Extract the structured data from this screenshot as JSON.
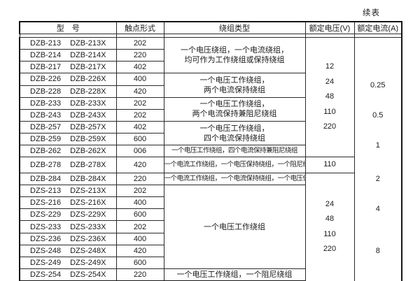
{
  "page": {
    "continued_label": "续表",
    "colors": {
      "background": "#ffffff",
      "text": "#1a1a1a",
      "border": "#2b2b2b"
    }
  },
  "table": {
    "headers": [
      "型　号",
      "触点形式",
      "绕组类型",
      "额定电压(V)",
      "额定电流(A)"
    ],
    "rows": [
      {
        "model": "DZB-213",
        "model_x": "DZB-213X",
        "contact": "202"
      },
      {
        "model": "DZB-214",
        "model_x": "DZB-214X",
        "contact": "220"
      },
      {
        "model": "DZB-217",
        "model_x": "DZB-217X",
        "contact": "402"
      },
      {
        "model": "DZB-226",
        "model_x": "DZB-226X",
        "contact": "400"
      },
      {
        "model": "DZB-228",
        "model_x": "DZB-228X",
        "contact": "420"
      },
      {
        "model": "DZB-233",
        "model_x": "DZB-233X",
        "contact": "202"
      },
      {
        "model": "DZB-243",
        "model_x": "DZB-243X",
        "contact": "202"
      },
      {
        "model": "DZB-257",
        "model_x": "DZB-257X",
        "contact": "402"
      },
      {
        "model": "DZB-259",
        "model_x": "DZB-259X",
        "contact": "600"
      },
      {
        "model": "DZB-262",
        "model_x": "DZB-262X",
        "contact": "006"
      },
      {
        "model": "DZB-278",
        "model_x": "DZB-278X",
        "contact": "420"
      },
      {
        "model": "DZB-284",
        "model_x": "DZB-284X",
        "contact": "220"
      },
      {
        "model": "DZS-213",
        "model_x": "DZS-213X",
        "contact": "202"
      },
      {
        "model": "DZS-216",
        "model_x": "DZS-216X",
        "contact": "400"
      },
      {
        "model": "DZS-229",
        "model_x": "DZS-229X",
        "contact": "600"
      },
      {
        "model": "DZS-233",
        "model_x": "DZS-233X",
        "contact": "202"
      },
      {
        "model": "DZS-236",
        "model_x": "DZS-236X",
        "contact": "400"
      },
      {
        "model": "DZS-248",
        "model_x": "DZS-248X",
        "contact": "420"
      },
      {
        "model": "DZS-249",
        "model_x": "DZS-249X",
        "contact": "600"
      },
      {
        "model": "DZS-254",
        "model_x": "DZS-254X",
        "contact": "220"
      }
    ],
    "winding_groups": [
      {
        "start": 0,
        "span": 3,
        "small": false,
        "lines": [
          "一个电压绕组，一个电流绕组，",
          "均可作为工作绕组或保持绕组"
        ]
      },
      {
        "start": 3,
        "span": 2,
        "small": false,
        "lines": [
          "一个电压工作绕组，",
          "两个电流保持绕组"
        ]
      },
      {
        "start": 5,
        "span": 2,
        "small": false,
        "lines": [
          "一个电压工作绕组，",
          "两个电流保持兼阻尼绕组"
        ]
      },
      {
        "start": 7,
        "span": 2,
        "small": false,
        "lines": [
          "一个电压工作绕组，",
          "四个电流保持绕组"
        ]
      },
      {
        "start": 9,
        "span": 1,
        "small": true,
        "lines": [
          "一个电压工作绕组，四个电流保持兼阻尼绕组"
        ]
      },
      {
        "start": 10,
        "span": 1,
        "small": true,
        "lines": [
          "一个电流工作绕组，一个电压保持绕组，一个阻尼绕组"
        ]
      },
      {
        "start": 11,
        "span": 1,
        "small": true,
        "lines": [
          "一个电流工作绕组，一个电流保持绕组，一个电压保持绕组"
        ]
      },
      {
        "start": 12,
        "span": 7,
        "small": false,
        "lines": [
          "一个电压工作绕组"
        ]
      },
      {
        "start": 19,
        "span": 1,
        "small": false,
        "lines": [
          "一个电压工作绕组，一个阻尼绕组"
        ]
      }
    ],
    "voltage_groups": [
      {
        "start": 0,
        "span": 10,
        "cut_bottom": false,
        "values": [
          "12",
          "24",
          "48",
          "110",
          "220"
        ]
      },
      {
        "start": 10,
        "span": 1,
        "cut_bottom": false,
        "values": [
          "110"
        ]
      },
      {
        "start": 11,
        "span": 9,
        "cut_bottom": true,
        "values": [
          "24",
          "48",
          "110",
          "220"
        ]
      }
    ],
    "current_groups": [
      {
        "start": 0,
        "span": 3,
        "value": ""
      },
      {
        "start": 3,
        "span": 2,
        "value": "0.25"
      },
      {
        "start": 5,
        "span": 3,
        "value": "0.5"
      },
      {
        "start": 8,
        "span": 2,
        "value": "1"
      },
      {
        "start": 10,
        "span": 1,
        "value": ""
      },
      {
        "start": 11,
        "span": 1,
        "value": "2"
      },
      {
        "start": 12,
        "span": 4,
        "value": "4"
      },
      {
        "start": 16,
        "span": 3,
        "value": "8"
      },
      {
        "start": 19,
        "span": 1,
        "value": ""
      }
    ]
  }
}
